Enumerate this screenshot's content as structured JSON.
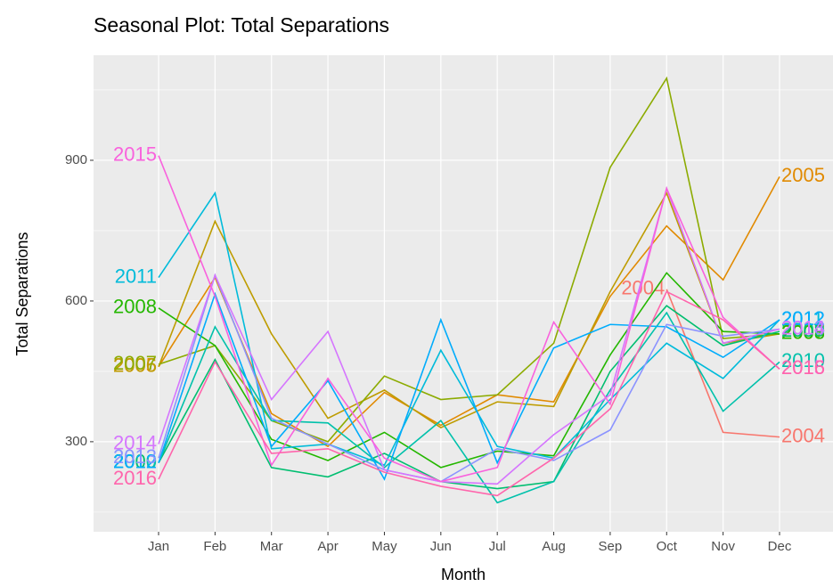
{
  "chart_data": {
    "type": "line",
    "title": "Seasonal Plot: Total Separations",
    "x_label": "Month",
    "y_label": "Total Separations",
    "categories": [
      "Jan",
      "Feb",
      "Mar",
      "Apr",
      "May",
      "Jun",
      "Jul",
      "Aug",
      "Sep",
      "Oct",
      "Nov",
      "Dec"
    ],
    "ylim": [
      108,
      1124
    ],
    "yticks": [
      300,
      600,
      900
    ],
    "grid": true,
    "series": [
      {
        "name": "2004",
        "color": "#F8766D",
        "values": [
          null,
          null,
          null,
          null,
          null,
          null,
          null,
          null,
          null,
          625,
          320,
          310
        ]
      },
      {
        "name": "2005",
        "color": "#E18A00",
        "values": [
          460,
          650,
          360,
          290,
          405,
          335,
          400,
          385,
          610,
          760,
          645,
          865
        ]
      },
      {
        "name": "2006",
        "color": "#BE9C00",
        "values": [
          460,
          770,
          530,
          350,
          410,
          330,
          385,
          375,
          620,
          830,
          510,
          530
        ]
      },
      {
        "name": "2007",
        "color": "#8CAB00",
        "values": [
          465,
          505,
          345,
          300,
          440,
          390,
          400,
          510,
          885,
          1075,
          520,
          530
        ]
      },
      {
        "name": "2008",
        "color": "#24B700",
        "values": [
          585,
          505,
          305,
          260,
          320,
          245,
          280,
          270,
          485,
          660,
          535,
          530
        ]
      },
      {
        "name": "2009",
        "color": "#00BE70",
        "values": [
          255,
          475,
          245,
          225,
          275,
          215,
          200,
          215,
          450,
          590,
          505,
          535
        ]
      },
      {
        "name": "2010",
        "color": "#00C1AB",
        "values": [
          255,
          545,
          345,
          340,
          245,
          345,
          170,
          215,
          410,
          575,
          365,
          470
        ]
      },
      {
        "name": "2011",
        "color": "#00BBDA",
        "values": [
          650,
          830,
          285,
          295,
          250,
          495,
          290,
          265,
          390,
          510,
          435,
          560
        ]
      },
      {
        "name": "2012",
        "color": "#00ACFC",
        "values": [
          255,
          615,
          290,
          430,
          220,
          560,
          255,
          500,
          550,
          545,
          480,
          560
        ]
      },
      {
        "name": "2013",
        "color": "#8B93FF",
        "values": [
          265,
          655,
          350,
          295,
          240,
          215,
          285,
          260,
          325,
          550,
          525,
          540
        ]
      },
      {
        "name": "2014",
        "color": "#D575FE",
        "values": [
          295,
          655,
          390,
          535,
          240,
          215,
          210,
          315,
          400,
          840,
          510,
          540
        ]
      },
      {
        "name": "2015",
        "color": "#F962DD",
        "values": [
          910,
          610,
          250,
          435,
          265,
          215,
          245,
          555,
          380,
          840,
          565,
          455
        ]
      },
      {
        "name": "2016",
        "color": "#FF65AC",
        "values": [
          220,
          470,
          275,
          285,
          235,
          205,
          185,
          265,
          370,
          620,
          560,
          455
        ]
      }
    ]
  }
}
